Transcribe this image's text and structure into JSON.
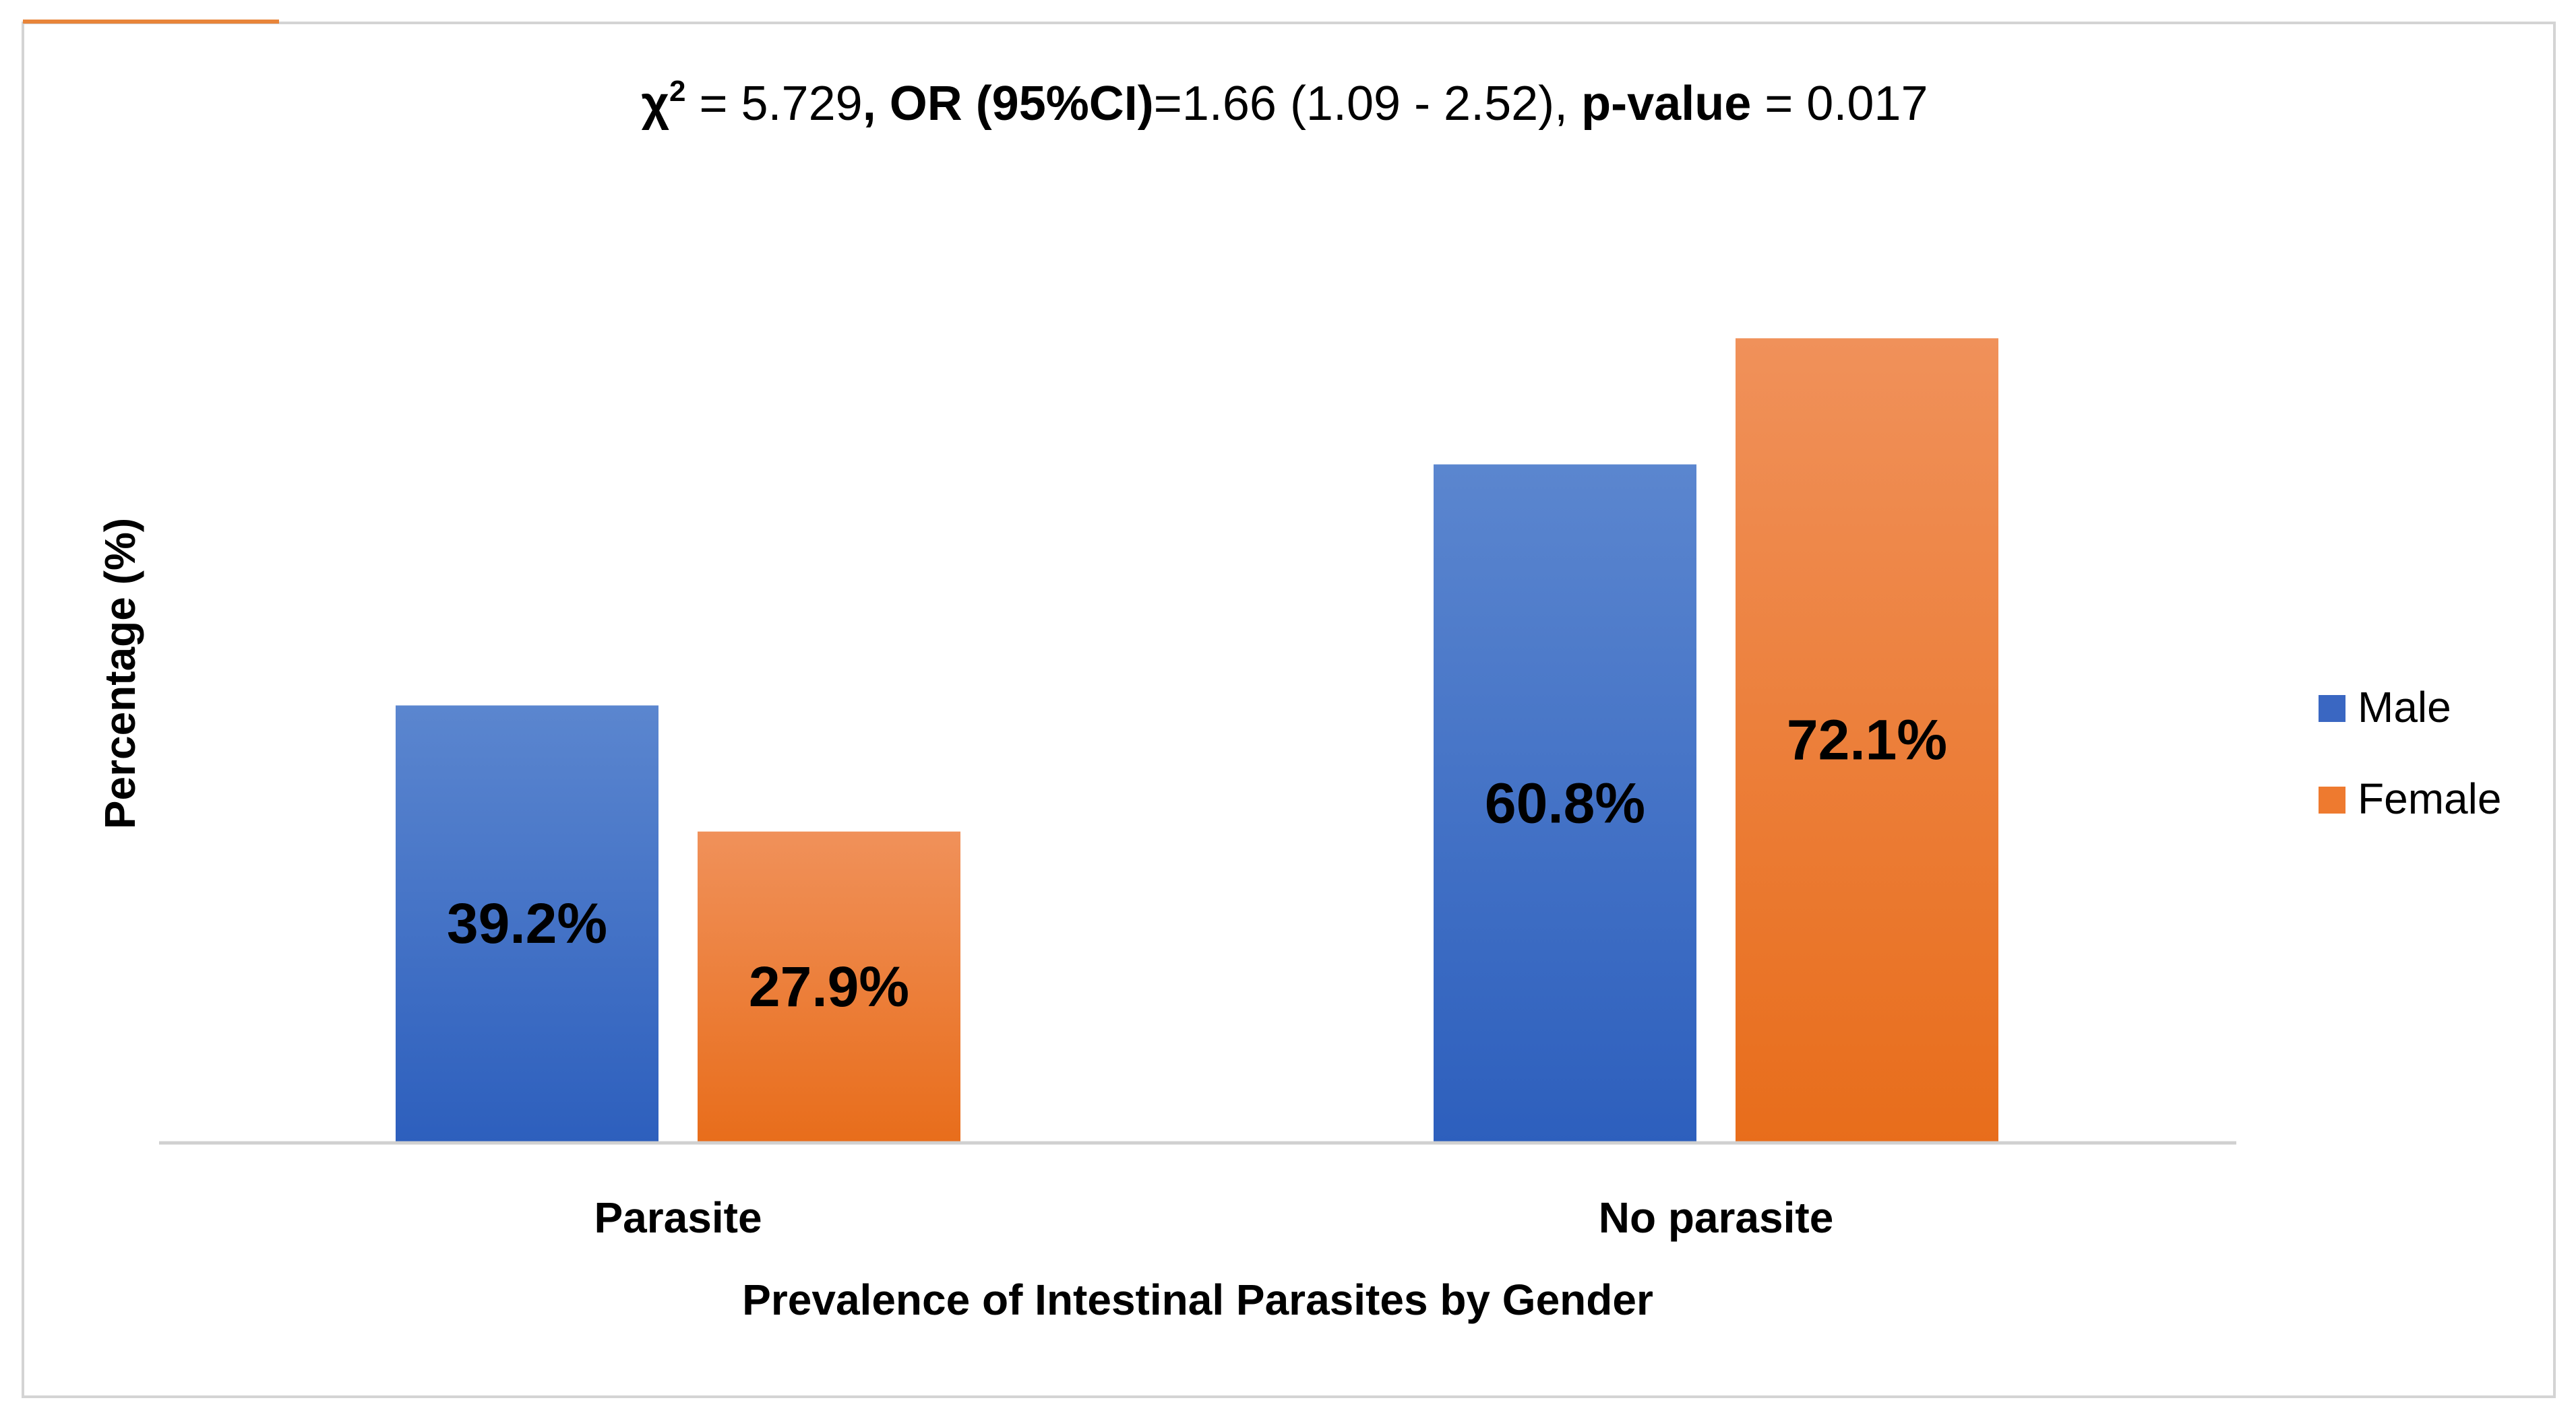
{
  "chart_data": {
    "type": "bar",
    "title": {
      "chi_symbol": "χ",
      "chi_exp": "2",
      "chi_value": " = 5.729",
      "or_label": ", OR (95%CI)",
      "or_value": "=1.66 (1.09 - 2.52), ",
      "p_label": "p-value",
      "p_value": " = 0.017"
    },
    "xlabel": "Prevalence of Intestinal Parasites by Gender",
    "ylabel": "Percentage (%)",
    "categories": [
      "Parasite",
      "No parasite"
    ],
    "series": [
      {
        "name": "Male",
        "values": [
          39.2,
          60.8
        ],
        "labels": [
          "39.2%",
          "60.8%"
        ],
        "color_top": "#5b86cf",
        "color_bottom": "#2d5fbd",
        "legend_color": "#3a67c2"
      },
      {
        "name": "Female",
        "values": [
          27.9,
          72.1
        ],
        "labels": [
          "27.9%",
          "72.1%"
        ],
        "color_top": "#f0915a",
        "color_bottom": "#e86d1b",
        "legend_color": "#ee7a2f"
      }
    ],
    "ylim": [
      0,
      100
    ],
    "grid": false,
    "legend_position": "right"
  }
}
